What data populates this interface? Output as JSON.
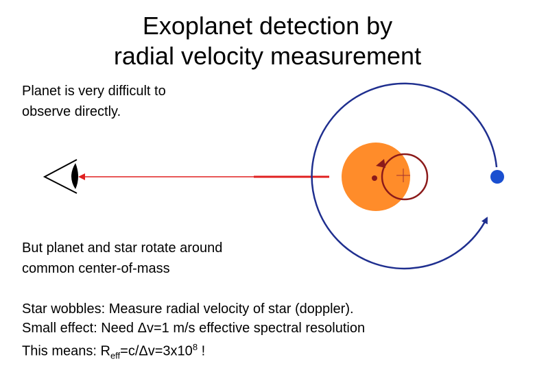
{
  "title": [
    "Exoplanet detection by",
    "radial velocity measurement"
  ],
  "text1": [
    "Planet is very difficult to",
    "observe directly."
  ],
  "text2": [
    "But planet and star rotate around",
    "common center-of-mass"
  ],
  "text3": {
    "lines": [
      "Star wobbles: Measure radial velocity of star (doppler).",
      "Small effect: Need Δv=1 m/s effective spectral resolution"
    ],
    "last": [
      "This means: R",
      "eff",
      "=c/Δv=3x10",
      "8",
      " !"
    ]
  }
}
